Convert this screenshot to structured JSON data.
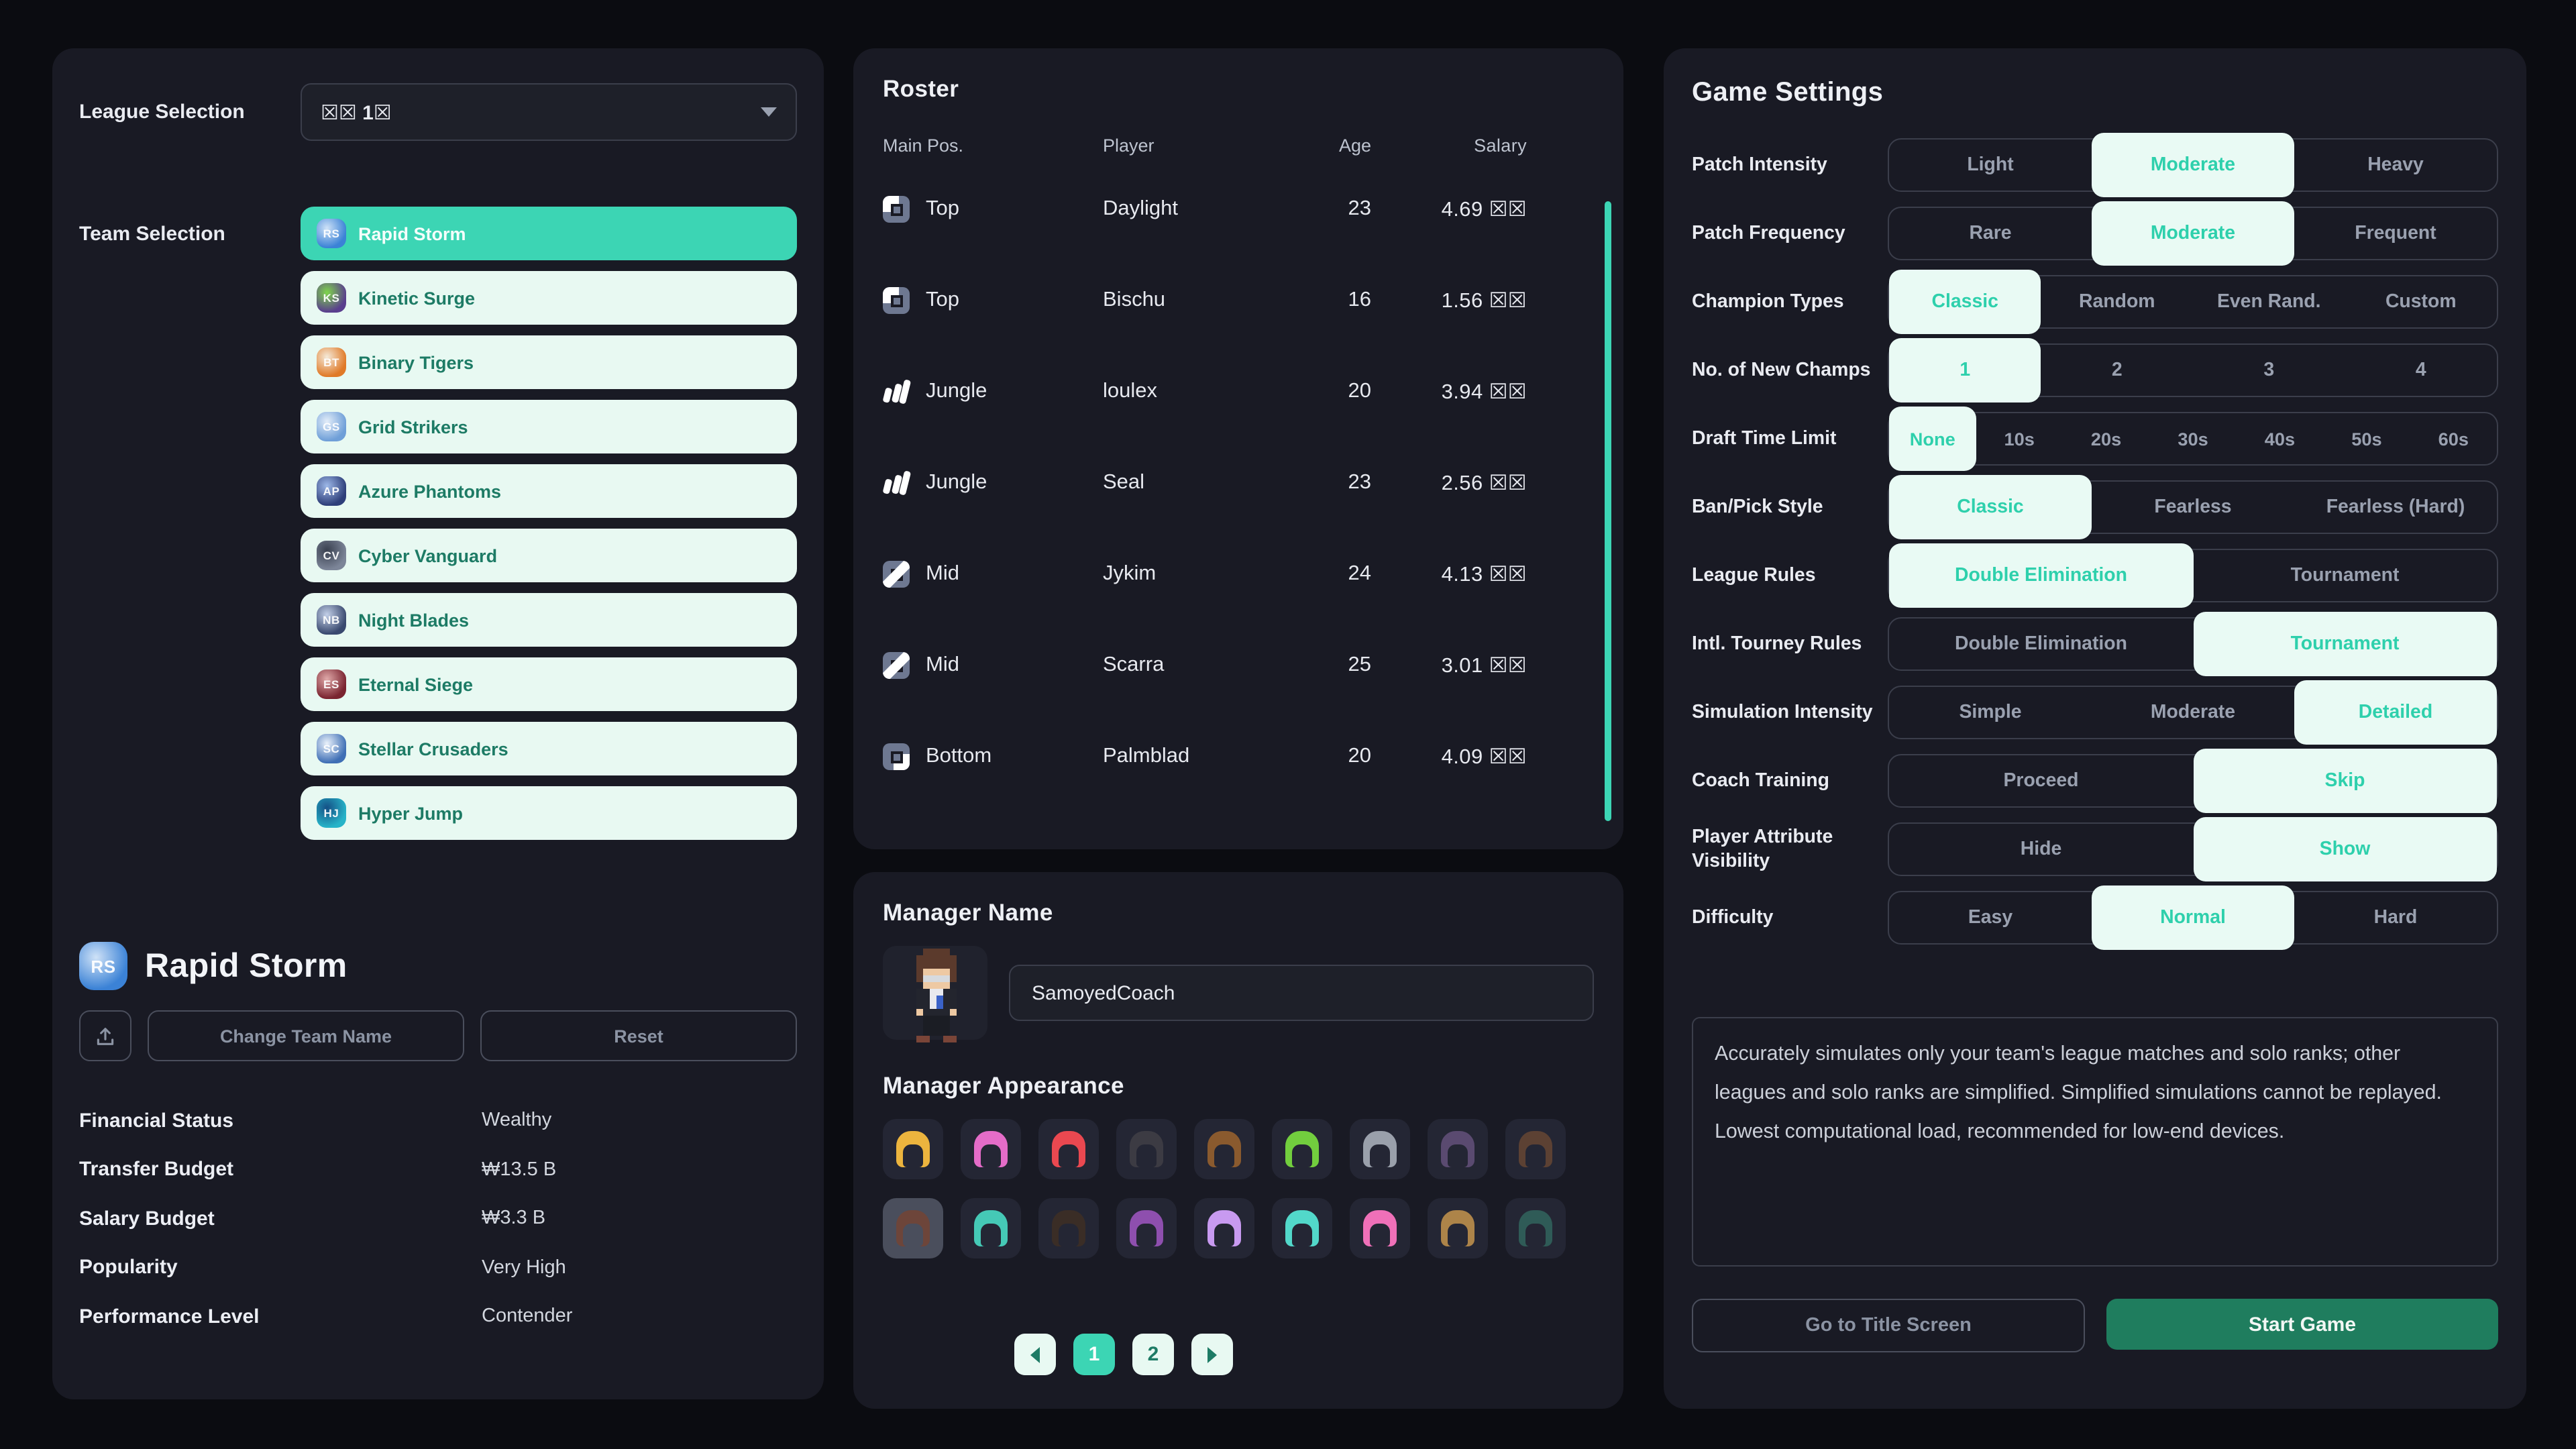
{
  "app": {
    "colors": {
      "background": "#0b0c11",
      "panel": "#191a24",
      "accent_teal": "#3cd5b4",
      "mint": "#e8f9f2",
      "mint_text": "#1d7b65",
      "pill_bg": "#e9faf4",
      "pill_text": "#2ed0ac",
      "start_green": "#1f7d5e",
      "scrollbar": "#3cd5b4"
    }
  },
  "league": {
    "label": "League Selection",
    "value": "☒☒ 1☒",
    "team_label": "Team Selection",
    "teams": [
      {
        "name": "Rapid Storm",
        "selected": true,
        "initials": "RS",
        "c1": "#3b82d6",
        "c2": "#cfe2f7"
      },
      {
        "name": "Kinetic Surge",
        "selected": false,
        "initials": "KS",
        "c1": "#5a3f8e",
        "c2": "#7ed64a"
      },
      {
        "name": "Binary Tigers",
        "selected": false,
        "initials": "BT",
        "c1": "#e07a28",
        "c2": "#f4ead9"
      },
      {
        "name": "Grid Strikers",
        "selected": false,
        "initials": "GS",
        "c1": "#6f9fd8",
        "c2": "#e3edf9"
      },
      {
        "name": "Azure Phantoms",
        "selected": false,
        "initials": "AP",
        "c1": "#2e3f7a",
        "c2": "#9db8e8"
      },
      {
        "name": "Cyber Vanguard",
        "selected": false,
        "initials": "CV",
        "c1": "#7c8598",
        "c2": "#39404f"
      },
      {
        "name": "Night Blades",
        "selected": false,
        "initials": "NB",
        "c1": "#39496f",
        "c2": "#c3d0e8"
      },
      {
        "name": "Eternal Siege",
        "selected": false,
        "initials": "ES",
        "c1": "#7a2430",
        "c2": "#e0a9a9"
      },
      {
        "name": "Stellar Crusaders",
        "selected": false,
        "initials": "SC",
        "c1": "#3f6fb5",
        "c2": "#eaf2fb"
      },
      {
        "name": "Hyper Jump",
        "selected": false,
        "initials": "HJ",
        "c1": "#27b3c8",
        "c2": "#155086"
      }
    ]
  },
  "detail": {
    "team_name": "Rapid Storm",
    "initials": "RS",
    "c1": "#3b82d6",
    "c2": "#cfe2f7",
    "change_name_label": "Change Team Name",
    "reset_label": "Reset",
    "stats": [
      {
        "label": "Financial Status",
        "value": "Wealthy"
      },
      {
        "label": "Transfer Budget",
        "value": "₩13.5 B"
      },
      {
        "label": "Salary Budget",
        "value": "₩3.3 B"
      },
      {
        "label": "Popularity",
        "value": "Very High"
      },
      {
        "label": "Performance Level",
        "value": "Contender"
      }
    ]
  },
  "roster": {
    "title": "Roster",
    "columns": [
      "Main Pos.",
      "Player",
      "Age",
      "Salary"
    ],
    "players": [
      {
        "pos": "Top",
        "icon": "top",
        "name": "Daylight",
        "age": "23",
        "salary": "4.69 ☒☒"
      },
      {
        "pos": "Top",
        "icon": "top",
        "name": "Bischu",
        "age": "16",
        "salary": "1.56 ☒☒"
      },
      {
        "pos": "Jungle",
        "icon": "jungle",
        "name": "loulex",
        "age": "20",
        "salary": "3.94 ☒☒"
      },
      {
        "pos": "Jungle",
        "icon": "jungle",
        "name": "Seal",
        "age": "23",
        "salary": "2.56 ☒☒"
      },
      {
        "pos": "Mid",
        "icon": "mid",
        "name": "Jykim",
        "age": "24",
        "salary": "4.13 ☒☒"
      },
      {
        "pos": "Mid",
        "icon": "mid",
        "name": "Scarra",
        "age": "25",
        "salary": "3.01 ☒☒"
      },
      {
        "pos": "Bottom",
        "icon": "bottom",
        "name": "Palmblad",
        "age": "20",
        "salary": "4.09 ☒☒"
      }
    ]
  },
  "manager": {
    "name_title": "Manager Name",
    "name_value": "SamoyedCoach",
    "appearance_title": "Manager Appearance",
    "hair_styles": [
      {
        "color": "#ecb43e",
        "selected": false
      },
      {
        "color": "#e46cc8",
        "selected": false
      },
      {
        "color": "#ea4850",
        "selected": false
      },
      {
        "color": "#3c3b43",
        "selected": false
      },
      {
        "color": "#8a5a2e",
        "selected": false
      },
      {
        "color": "#72ce3e",
        "selected": false
      },
      {
        "color": "#9aa0ab",
        "selected": false
      },
      {
        "color": "#5a4a70",
        "selected": false
      },
      {
        "color": "#5c4133",
        "selected": false
      },
      {
        "color": "#6d453a",
        "selected": true
      },
      {
        "color": "#45c9b6",
        "selected": false
      },
      {
        "color": "#3a2d26",
        "selected": false
      },
      {
        "color": "#8e4fae",
        "selected": false
      },
      {
        "color": "#c89af0",
        "selected": false
      },
      {
        "color": "#52d8ca",
        "selected": false
      },
      {
        "color": "#ef70b8",
        "selected": false
      },
      {
        "color": "#ad8449",
        "selected": false
      },
      {
        "color": "#2f5b57",
        "selected": false
      }
    ],
    "pagination": {
      "page1": "1",
      "page2": "2",
      "current": "1"
    }
  },
  "settings": {
    "title": "Game Settings",
    "rows": [
      {
        "label": "Patch Intensity",
        "options": [
          "Light",
          "Moderate",
          "Heavy"
        ],
        "selected": 1
      },
      {
        "label": "Patch Frequency",
        "options": [
          "Rare",
          "Moderate",
          "Frequent"
        ],
        "selected": 1
      },
      {
        "label": "Champion Types",
        "options": [
          "Classic",
          "Random",
          "Even Rand.",
          "Custom"
        ],
        "selected": 0
      },
      {
        "label": "No. of New Champs",
        "options": [
          "1",
          "2",
          "3",
          "4"
        ],
        "selected": 0
      },
      {
        "label": "Draft Time Limit",
        "options": [
          "None",
          "10s",
          "20s",
          "30s",
          "40s",
          "50s",
          "60s"
        ],
        "selected": 0
      },
      {
        "label": "Ban/Pick Style",
        "options": [
          "Classic",
          "Fearless",
          "Fearless (Hard)"
        ],
        "selected": 0
      },
      {
        "label": "League Rules",
        "options": [
          "Double Elimination",
          "Tournament"
        ],
        "selected": 0
      },
      {
        "label": "Intl. Tourney Rules",
        "options": [
          "Double Elimination",
          "Tournament"
        ],
        "selected": 1
      },
      {
        "label": "Simulation Intensity",
        "options": [
          "Simple",
          "Moderate",
          "Detailed"
        ],
        "selected": 2
      },
      {
        "label": "Coach Training",
        "options": [
          "Proceed",
          "Skip"
        ],
        "selected": 1
      },
      {
        "label": "Player Attribute Visibility",
        "options": [
          "Hide",
          "Show"
        ],
        "selected": 1
      },
      {
        "label": "Difficulty",
        "options": [
          "Easy",
          "Normal",
          "Hard"
        ],
        "selected": 1
      }
    ],
    "description": "Accurately simulates only your team's league matches and solo ranks; other leagues and solo ranks are simplified. Simplified simulations cannot be replayed. Lowest computational load, recommended for low-end devices.",
    "title_screen_label": "Go to Title Screen",
    "start_label": "Start Game"
  }
}
